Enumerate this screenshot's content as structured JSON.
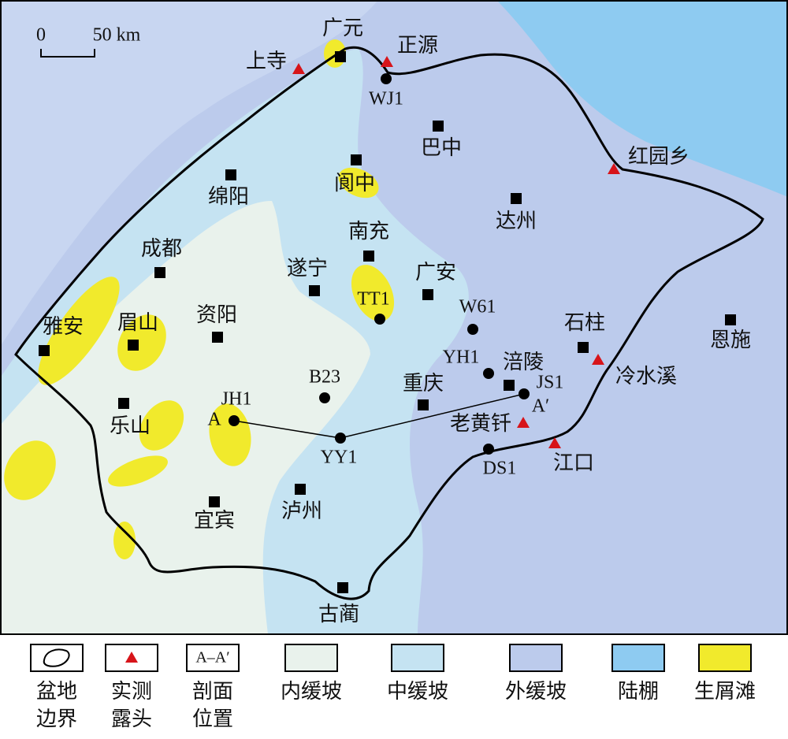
{
  "scale_bar": {
    "zero": "0",
    "length": "50 km"
  },
  "cities": [
    "广元",
    "巴中",
    "阆中",
    "绵阳",
    "达州",
    "南充",
    "成都",
    "遂宁",
    "广安",
    "资阳",
    "雅安",
    "眉山",
    "石柱",
    "恩施",
    "涪陵",
    "重庆",
    "乐山",
    "泸州",
    "宜宾",
    "古蔺"
  ],
  "wells": [
    "WJ1",
    "TT1",
    "W61",
    "YH1",
    "B23",
    "JH1",
    "JS1",
    "YY1",
    "DS1"
  ],
  "outcrops": [
    "上寺",
    "正源",
    "红园乡",
    "冷水溪",
    "老黄钎",
    "江口"
  ],
  "section": {
    "start": "A",
    "end": "A′"
  },
  "legend": [
    {
      "lines": [
        "盆地",
        "边界"
      ]
    },
    {
      "lines": [
        "实测",
        "露头"
      ]
    },
    {
      "symbol": "A–A′",
      "lines": [
        "剖面",
        "位置"
      ]
    },
    {
      "lines": [
        "内缓坡"
      ]
    },
    {
      "lines": [
        "中缓坡"
      ]
    },
    {
      "lines": [
        "外缓坡"
      ]
    },
    {
      "lines": [
        "陆棚"
      ]
    },
    {
      "lines": [
        "生屑滩"
      ]
    }
  ]
}
